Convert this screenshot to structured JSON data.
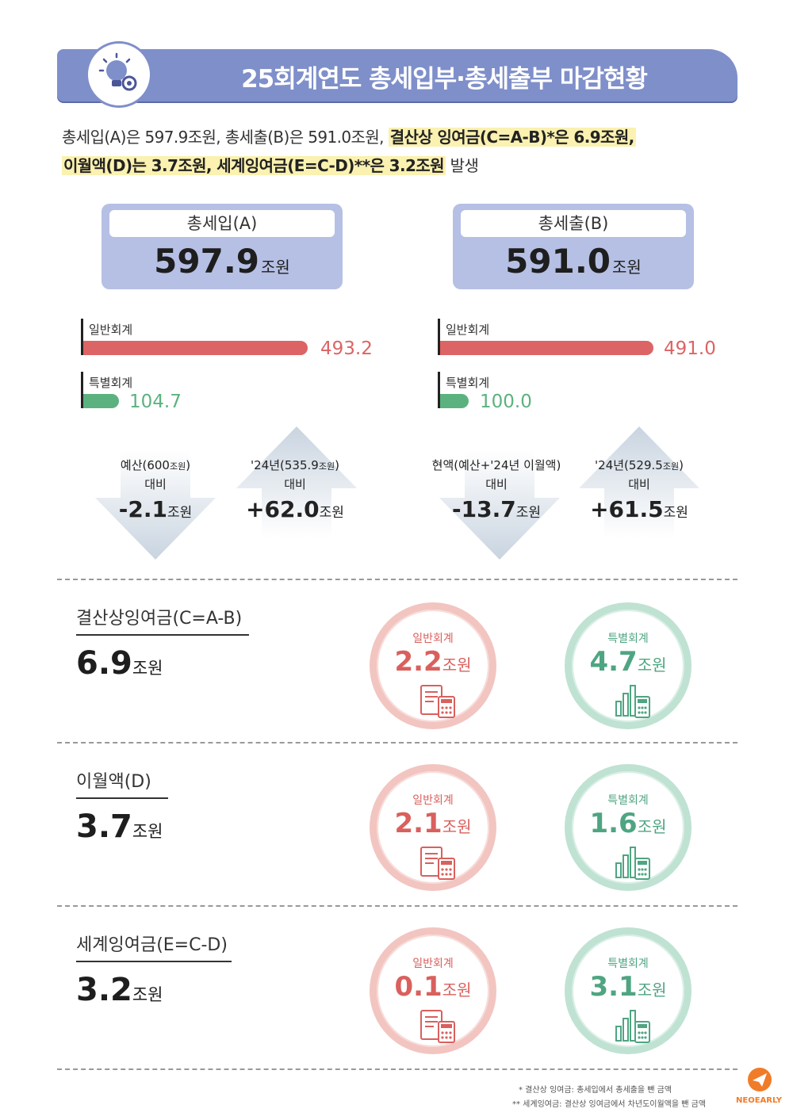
{
  "header": {
    "title": "25회계연도 총세입부·총세출부 마감현황"
  },
  "intro": {
    "part1": "총세입(A)은 597.9조원, 총세출(B)은 591.0조원,",
    "hl1": "결산상 잉여금(C=A-B)*은 6.9조원,",
    "hl2": "이월액(D)는 3.7조원, 세계잉여금(E=C-D)**은 3.2조원",
    "part2": "발생"
  },
  "totals": [
    {
      "label": "총세입(A)",
      "value": "597.9",
      "unit": "조원"
    },
    {
      "label": "총세출(B)",
      "value": "591.0",
      "unit": "조원"
    }
  ],
  "bars": {
    "revenue": {
      "general": {
        "label": "일반회계",
        "value": 493.2,
        "display": "493.2"
      },
      "special": {
        "label": "특별회계",
        "value": 104.7,
        "display": "104.7"
      }
    },
    "expenditure": {
      "general": {
        "label": "일반회계",
        "value": 491.0,
        "display": "491.0"
      },
      "special": {
        "label": "특별회계",
        "value": 100.0,
        "display": "100.0"
      }
    }
  },
  "comparisons": [
    {
      "line1a": "예산(600",
      "line1s": "조원",
      "line1b": ")",
      "line2": "대비",
      "value": "-2.1",
      "unit": "조원",
      "direction": "down"
    },
    {
      "line1a": "'24년(535.9",
      "line1s": "조원",
      "line1b": ")",
      "line2": "대비",
      "value": "+62.0",
      "unit": "조원",
      "direction": "up"
    },
    {
      "line1a": "현액(예산+'24년 이월액)",
      "line1s": "",
      "line1b": "",
      "line2": "대비",
      "value": "-13.7",
      "unit": "조원",
      "direction": "down"
    },
    {
      "line1a": "'24년(529.5",
      "line1s": "조원",
      "line1b": ")",
      "line2": "대비",
      "value": "+61.5",
      "unit": "조원",
      "direction": "up"
    }
  ],
  "sections": [
    {
      "title": "결산상잉여금(C=A-B)",
      "value": "6.9",
      "unit": "조원",
      "general": {
        "label": "일반회계",
        "value": "2.2",
        "unit": "조원"
      },
      "special": {
        "label": "특별회계",
        "value": "4.7",
        "unit": "조원"
      }
    },
    {
      "title": "이월액(D)",
      "value": "3.7",
      "unit": "조원",
      "general": {
        "label": "일반회계",
        "value": "2.1",
        "unit": "조원"
      },
      "special": {
        "label": "특별회계",
        "value": "1.6",
        "unit": "조원"
      }
    },
    {
      "title": "세계잉여금(E=C-D)",
      "value": "3.2",
      "unit": "조원",
      "general": {
        "label": "일반회계",
        "value": "0.1",
        "unit": "조원"
      },
      "special": {
        "label": "특별회계",
        "value": "3.1",
        "unit": "조원"
      }
    }
  ],
  "footnotes": [
    "* 결산상 잉여금: 총세입에서 총세출을 뺀 금액",
    "** 세계잉여금: 결산상 잉여금에서 차년도이월액을 뺀 금액"
  ],
  "logo": {
    "text": "NEOEARLY"
  },
  "colors": {
    "banner": "#7f8fca",
    "red": "#dc6465",
    "green": "#5cb27f",
    "highlight": "#fbf1b0"
  },
  "icons": [
    "lightbulb-gear-icon",
    "receipt-calculator-icon",
    "chart-calculator-icon",
    "arrow-down-icon",
    "arrow-up-icon"
  ]
}
